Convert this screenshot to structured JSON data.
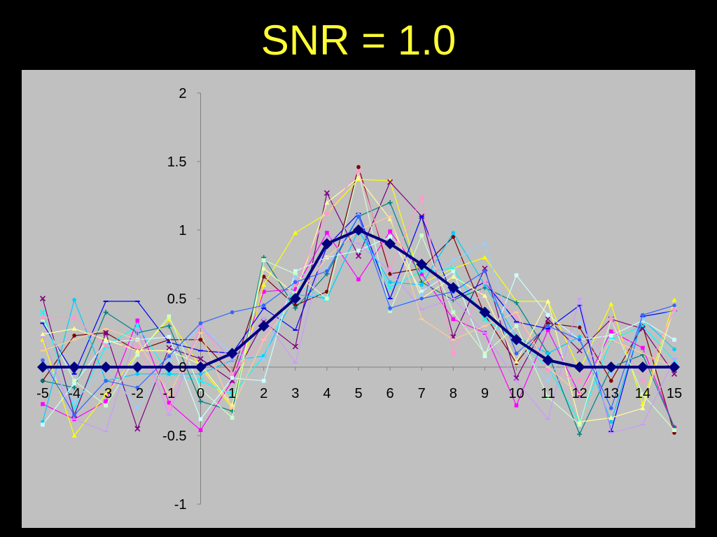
{
  "title": "SNR = 1.0",
  "chart_data": {
    "type": "line",
    "title": "SNR = 1.0",
    "xlabel": "",
    "ylabel": "",
    "x": [
      -5,
      -4,
      -3,
      -2,
      -1,
      0,
      1,
      2,
      3,
      4,
      5,
      6,
      7,
      8,
      9,
      10,
      11,
      12,
      13,
      14,
      15
    ],
    "xlim": [
      -5,
      15
    ],
    "ylim": [
      -1,
      2
    ],
    "x_ticks": [
      "-5",
      "-4",
      "-3",
      "-2",
      "-1",
      "0",
      "1",
      "2",
      "3",
      "4",
      "5",
      "6",
      "7",
      "8",
      "9",
      "10",
      "11",
      "12",
      "13",
      "14",
      "15"
    ],
    "y_ticks": [
      "-1",
      "-0.5",
      "0",
      "0.5",
      "1",
      "1.5",
      "2"
    ],
    "grid": false,
    "legend": "none",
    "background": "#c0c0c0",
    "series": [
      {
        "color": "#000080",
        "marker": "diamond",
        "emphasis": true,
        "values": [
          0,
          0,
          0,
          0,
          0,
          0,
          0.1,
          0.3,
          0.5,
          0.9,
          1.0,
          0.9,
          0.75,
          0.58,
          0.4,
          0.2,
          0.05,
          0,
          0,
          0,
          0
        ]
      },
      {
        "color": "#800000",
        "marker": "circle",
        "values": [
          -0.1,
          0.23,
          0.25,
          0.12,
          0.2,
          0.2,
          -0.05,
          0.66,
          0.45,
          0.55,
          1.46,
          0.68,
          0.72,
          0.95,
          0.38,
          0.03,
          0.32,
          0.29,
          -0.1,
          0.3,
          -0.48
        ]
      },
      {
        "color": "#ff00ff",
        "marker": "square",
        "values": [
          -0.27,
          -0.38,
          -0.25,
          0.34,
          -0.26,
          -0.46,
          -0.1,
          0.55,
          0.57,
          0.98,
          0.64,
          0.99,
          0.68,
          0.35,
          0.25,
          -0.28,
          0.27,
          -0.2,
          0.26,
          0.14,
          -0.44
        ]
      },
      {
        "color": "#ffff00",
        "marker": "triangle",
        "values": [
          0.2,
          -0.5,
          -0.2,
          0.1,
          0.35,
          0.0,
          -0.3,
          0.6,
          0.98,
          1.12,
          1.37,
          1.36,
          0.61,
          0.72,
          0.8,
          0.48,
          0.48,
          -0.02,
          0.46,
          -0.27,
          0.49
        ]
      },
      {
        "color": "#00ffff",
        "marker": "x",
        "values": [
          0.4,
          -0.3,
          0.15,
          0.3,
          -0.05,
          -0.1,
          -0.2,
          0.08,
          0.6,
          0.5,
          1.0,
          0.58,
          0.7,
          0.72,
          0.35,
          0.2,
          0.0,
          -0.4,
          0.2,
          0.3,
          0.05
        ]
      },
      {
        "color": "#800080",
        "marker": "x",
        "values": [
          0.5,
          -0.35,
          0.25,
          -0.45,
          0.14,
          0.06,
          -0.1,
          0.33,
          0.15,
          1.27,
          0.81,
          1.35,
          1.1,
          0.22,
          0.72,
          -0.08,
          0.35,
          0.12,
          0.35,
          0.28,
          -0.05
        ]
      },
      {
        "color": "#008080",
        "marker": "plus",
        "values": [
          -0.1,
          -0.15,
          0.4,
          0.25,
          0.3,
          -0.25,
          -0.32,
          0.8,
          0.43,
          0.68,
          1.1,
          1.2,
          0.62,
          0.49,
          0.58,
          0.47,
          0.1,
          -0.49,
          0.0,
          0.09,
          -0.44
        ]
      },
      {
        "color": "#0000ff",
        "marker": "dash",
        "values": [
          0.32,
          -0.05,
          0.48,
          0.48,
          0.18,
          0.12,
          0.1,
          0.43,
          0.27,
          0.88,
          1.12,
          0.5,
          1.1,
          0.5,
          0.62,
          0.33,
          0.28,
          0.45,
          -0.47,
          0.37,
          0.41
        ]
      },
      {
        "color": "#00ccff",
        "marker": "circle",
        "values": [
          -0.4,
          0.49,
          -0.1,
          -0.05,
          -0.05,
          -0.05,
          0.05,
          0.08,
          0.53,
          0.5,
          1.0,
          0.62,
          0.6,
          0.98,
          0.6,
          0.22,
          0.1,
          0.22,
          -0.4,
          0.35,
          0.13
        ]
      },
      {
        "color": "#ccffff",
        "marker": "square",
        "values": [
          -0.42,
          -0.12,
          0.18,
          0.2,
          0.22,
          -0.38,
          -0.08,
          -0.1,
          0.7,
          0.8,
          0.85,
          0.95,
          0.55,
          0.7,
          0.08,
          0.67,
          0.38,
          0.2,
          0.23,
          0.34,
          0.2
        ]
      },
      {
        "color": "#ccffcc",
        "marker": "square",
        "values": [
          0.35,
          -0.1,
          -0.28,
          0.09,
          0.37,
          -0.16,
          -0.37,
          0.78,
          0.68,
          0.5,
          1.43,
          0.41,
          0.96,
          0.4,
          0.1,
          0.3,
          -0.22,
          -0.42,
          0.35,
          -0.2,
          -0.46
        ]
      },
      {
        "color": "#ffff99",
        "marker": "triangle",
        "values": [
          0.24,
          0.28,
          0.2,
          0.12,
          0.12,
          0.02,
          -0.28,
          0.72,
          0.53,
          1.2,
          1.38,
          1.08,
          0.5,
          0.66,
          0.52,
          0.04,
          0.48,
          -0.4,
          -0.37,
          -0.3,
          0.44
        ]
      },
      {
        "color": "#99ccff",
        "marker": "circle",
        "values": [
          0.05,
          -0.25,
          0.0,
          -0.3,
          0.05,
          0.3,
          0.1,
          0.06,
          0.66,
          0.72,
          1.11,
          0.42,
          0.53,
          0.78,
          0.9,
          0.18,
          -0.1,
          0.32,
          -0.05,
          0.35,
          0.41
        ]
      },
      {
        "color": "#ff99cc",
        "marker": "square",
        "values": [
          0.36,
          0.36,
          0.16,
          0.15,
          -0.3,
          0.32,
          -0.05,
          0.2,
          0.6,
          1.12,
          1.43,
          0.72,
          1.24,
          0.1,
          0.62,
          0.37,
          -0.02,
          -0.1,
          0.35,
          -0.1,
          0.42
        ]
      },
      {
        "color": "#cc99ff",
        "marker": "dash",
        "values": [
          0.22,
          -0.38,
          -0.47,
          0.27,
          -0.35,
          0.3,
          0.05,
          0.36,
          0.03,
          0.95,
          0.9,
          0.7,
          0.42,
          0.5,
          0.25,
          -0.1,
          -0.38,
          0.5,
          -0.48,
          -0.42,
          0.06
        ]
      },
      {
        "color": "#ffcc99",
        "marker": "dash",
        "values": [
          0.12,
          0.2,
          0.28,
          0.2,
          -0.2,
          0.25,
          -0.3,
          0.2,
          0.5,
          0.8,
          1.0,
          1.1,
          0.35,
          0.2,
          0.3,
          0.4,
          0.0,
          -0.2,
          0.2,
          0.1,
          0.0
        ]
      },
      {
        "color": "#3366ff",
        "marker": "circle",
        "values": [
          0.05,
          -0.35,
          -0.1,
          -0.15,
          0.08,
          0.32,
          0.4,
          0.45,
          0.62,
          0.7,
          1.1,
          0.43,
          0.5,
          0.55,
          0.7,
          0.1,
          0.3,
          0.2,
          -0.3,
          0.38,
          0.45
        ]
      }
    ]
  }
}
